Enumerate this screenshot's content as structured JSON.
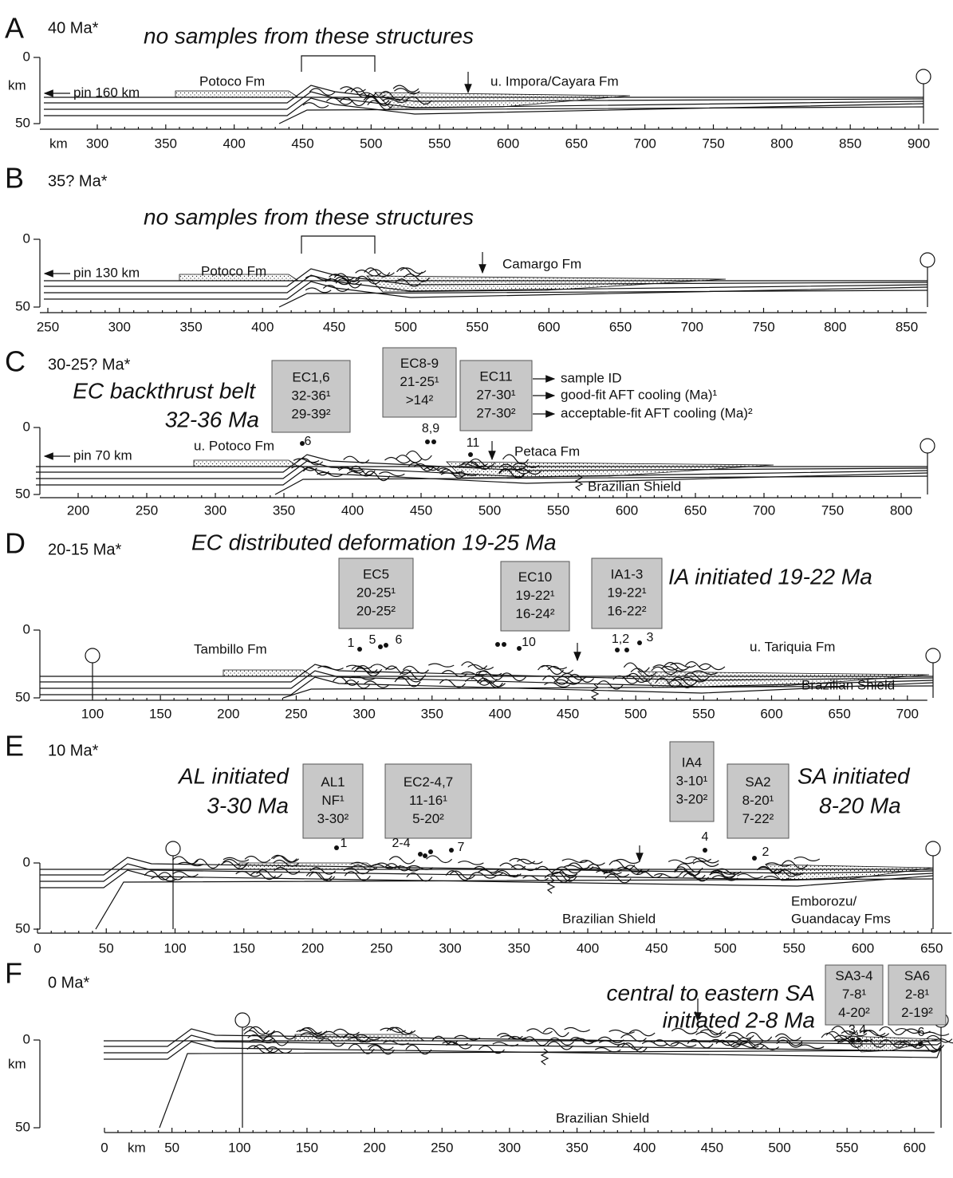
{
  "panels": [
    {
      "letter": "A",
      "age": "40 Ma*",
      "headings": [
        "no samples from these structures"
      ],
      "depth_ticks": [
        0,
        50
      ],
      "depth_unit": "km",
      "x_unit": "km",
      "x_ticks": [
        300,
        350,
        400,
        450,
        500,
        550,
        600,
        650,
        700,
        750,
        800,
        850,
        900
      ],
      "labels": [
        "pin 160 km",
        "Potoco Fm",
        "u. Impora/Cayara Fm"
      ]
    },
    {
      "letter": "B",
      "age": "35? Ma*",
      "headings": [
        "no samples from these structures"
      ],
      "depth_ticks": [
        0,
        50
      ],
      "x_ticks": [
        250,
        300,
        350,
        400,
        450,
        500,
        550,
        600,
        650,
        700,
        750,
        800,
        850
      ],
      "labels": [
        "pin 130 km",
        "Potoco Fm",
        "Camargo Fm"
      ]
    },
    {
      "letter": "C",
      "age": "30-25? Ma*",
      "headings": [
        "EC backthrust belt",
        "32-36 Ma"
      ],
      "depth_ticks": [
        0,
        50
      ],
      "x_ticks": [
        200,
        250,
        300,
        350,
        400,
        450,
        500,
        550,
        600,
        650,
        700,
        750,
        800
      ],
      "labels": [
        "pin 70 km",
        "u. Potoco Fm",
        "Petaca Fm",
        "Brazilian Shield"
      ],
      "boxes": [
        [
          "EC1,6",
          "32-36¹",
          "29-39²"
        ],
        [
          "EC8-9",
          "21-25¹",
          ">14²"
        ],
        [
          "EC11",
          "27-30¹",
          "27-30²"
        ]
      ],
      "legend": [
        "sample ID",
        "good-fit AFT cooling  (Ma)¹",
        "acceptable-fit AFT cooling  (Ma)²"
      ],
      "samples": [
        "6",
        "8,9",
        "11"
      ]
    },
    {
      "letter": "D",
      "age": "20-15 Ma*",
      "headings": [
        "EC distributed deformation 19-25 Ma",
        "IA initiated 19-22 Ma"
      ],
      "depth_ticks": [
        0,
        50
      ],
      "x_ticks": [
        100,
        150,
        200,
        250,
        300,
        350,
        400,
        450,
        500,
        550,
        600,
        650,
        700
      ],
      "labels": [
        "Tambillo Fm",
        "u. Tariquia Fm",
        "Brazilian Shield"
      ],
      "boxes": [
        [
          "EC5",
          "20-25¹",
          "20-25²"
        ],
        [
          "EC10",
          "19-22¹",
          "16-24²"
        ],
        [
          "IA1-3",
          "19-22¹",
          "16-22²"
        ]
      ],
      "samples": [
        "1",
        "5",
        "6",
        "10",
        "1,2",
        "3"
      ]
    },
    {
      "letter": "E",
      "age": "10 Ma*",
      "headings": [
        "AL initiated",
        "3-30 Ma",
        "SA initiated",
        "8-20 Ma"
      ],
      "depth_ticks": [
        0,
        50
      ],
      "x_ticks": [
        0,
        50,
        100,
        150,
        200,
        250,
        300,
        350,
        400,
        450,
        500,
        550,
        600,
        650
      ],
      "labels": [
        "Brazilian Shield",
        "Emborozu/",
        "Guandacay Fms"
      ],
      "boxes": [
        [
          "AL1",
          "NF¹",
          "3-30²"
        ],
        [
          "EC2-4,7",
          "11-16¹",
          "5-20²"
        ],
        [
          "IA4",
          "3-10¹",
          "3-20²"
        ],
        [
          "SA2",
          "8-20¹",
          "7-22²"
        ]
      ],
      "samples": [
        "1",
        "2-4",
        "7",
        "4",
        "2"
      ]
    },
    {
      "letter": "F",
      "age": "0 Ma*",
      "headings": [
        "central to eastern SA",
        "initiated 2-8 Ma"
      ],
      "depth_ticks": [
        0,
        50
      ],
      "depth_unit": "km",
      "x_unit": "km",
      "x_ticks": [
        0,
        50,
        100,
        150,
        200,
        250,
        300,
        350,
        400,
        450,
        500,
        550,
        600
      ],
      "labels": [
        "Brazilian Shield"
      ],
      "boxes": [
        [
          "SA3-4",
          "7-8¹",
          "4-20²"
        ],
        [
          "SA6",
          "2-8¹",
          "2-19²"
        ]
      ],
      "samples": [
        "3,4",
        "6"
      ]
    }
  ]
}
